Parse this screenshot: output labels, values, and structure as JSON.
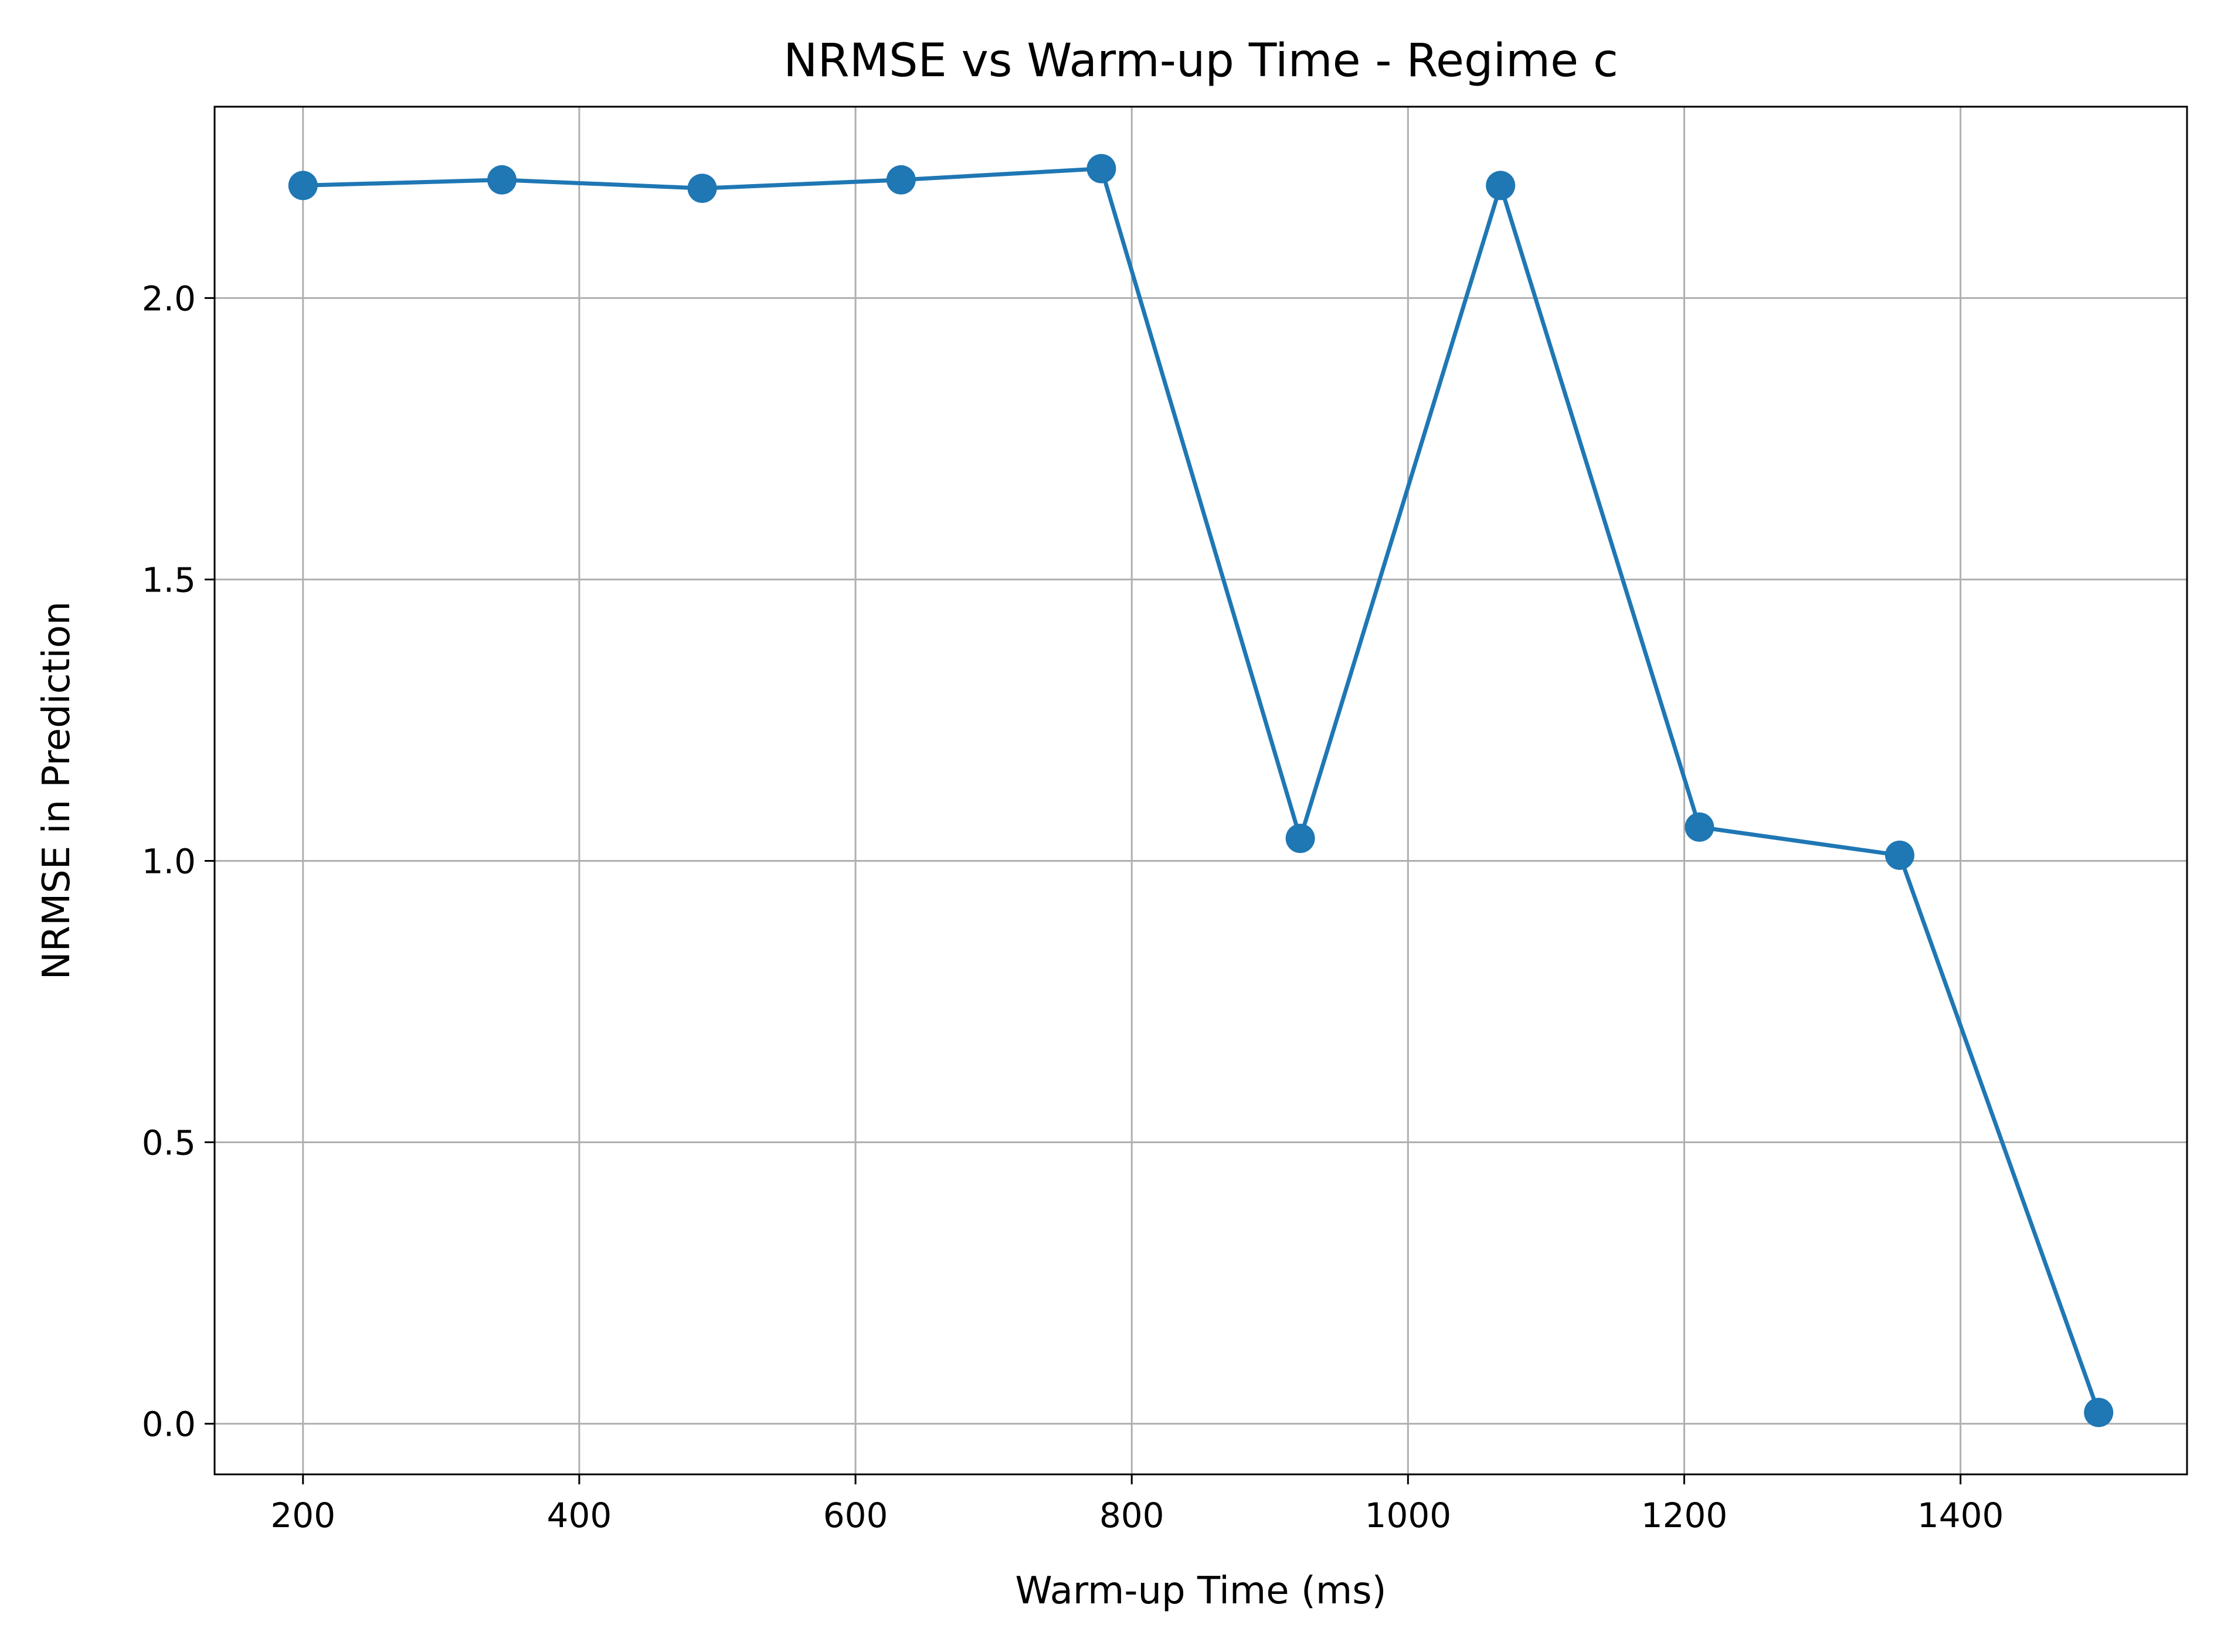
{
  "chart_data": {
    "type": "line",
    "title": "NRMSE vs Warm-up Time - Regime c",
    "xlabel": "Warm-up Time (ms)",
    "ylabel": "NRMSE in Prediction",
    "xlim": [
      136,
      1564
    ],
    "ylim": [
      -0.09,
      2.34
    ],
    "xticks": [
      200,
      400,
      600,
      800,
      1000,
      1200,
      1400
    ],
    "xtick_labels": [
      "200",
      "400",
      "600",
      "800",
      "1000",
      "1200",
      "1400"
    ],
    "yticks": [
      0.0,
      0.5,
      1.0,
      1.5,
      2.0
    ],
    "ytick_labels": [
      "0.0",
      "0.5",
      "1.0",
      "1.5",
      "2.0"
    ],
    "grid": true,
    "legend": "none",
    "series": [
      {
        "color": "#1f77b4",
        "marker": "circle",
        "x": [
          200,
          344,
          489,
          633,
          778,
          922,
          1067,
          1211,
          1356,
          1500
        ],
        "y": [
          2.2,
          2.21,
          2.195,
          2.21,
          2.23,
          1.04,
          2.2,
          1.06,
          1.01,
          0.02
        ]
      }
    ]
  }
}
